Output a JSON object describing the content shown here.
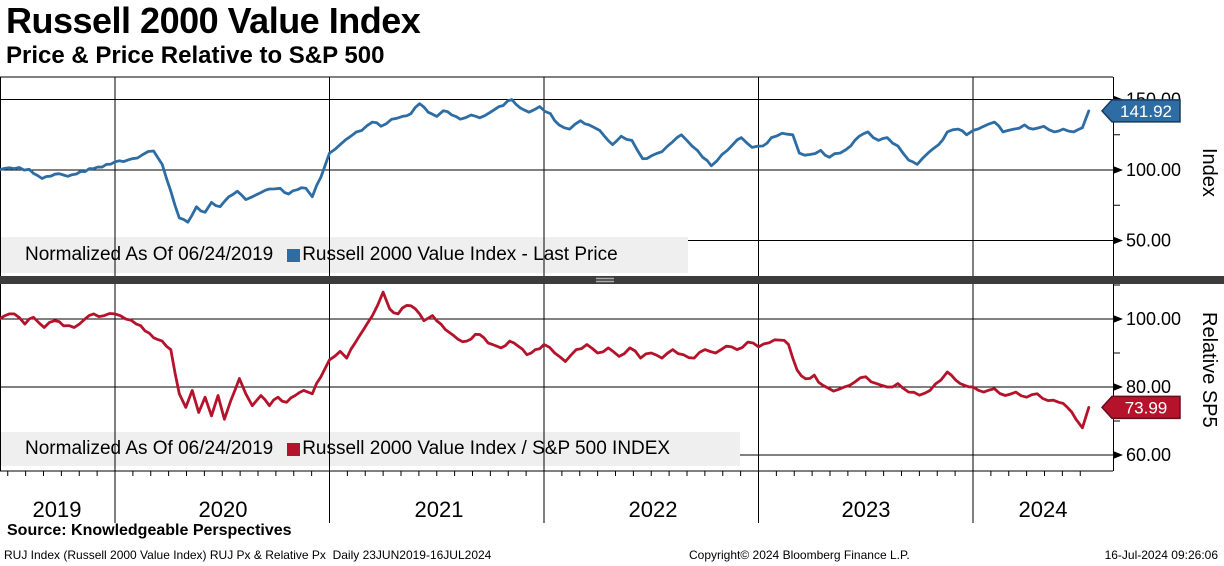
{
  "header": {
    "title": "Russell 2000 Value Index",
    "subtitle": "Price & Price Relative to S&P 500"
  },
  "source_line": "Source: Knowledgeable Perspectives",
  "footer": {
    "left": "RUJ Index (Russell 2000 Value Index) RUJ Px & Relative Px  Daily 23JUN2019-16JUL2024",
    "center": "Copyright© 2024 Bloomberg Finance L.P.",
    "right": "16-Jul-2024 09:26:06"
  },
  "x_axis": {
    "tick_labels": [
      "2019",
      "2020",
      "2021",
      "2022",
      "2023",
      "2024"
    ],
    "gridline_years": [
      2020,
      2021,
      2022,
      2023,
      2024
    ],
    "start": 2019.46,
    "end": 2024.58,
    "minor_ticks_per_year": 12
  },
  "colors": {
    "blue_line": "#2e6da4",
    "blue_badge_border": "#1b3a5c",
    "red_line": "#b5122b",
    "red_badge_border": "#690d1b",
    "legend_bg": "#efefef",
    "separator": "#3c3c3c",
    "grid": "#000000"
  },
  "chart_data": [
    {
      "type": "line",
      "panel": "top",
      "axis_title": "Index",
      "legend": {
        "normalized_label": "Normalized As Of 06/24/2019",
        "series_label": "Russell 2000 Value Index - Last Price"
      },
      "last_price": 141.92,
      "line_color": "#2e6da4",
      "badge_color": "#2e6da4",
      "badge_border": "#1b3a5c",
      "y_ticks_major": [
        150,
        100,
        50
      ],
      "y_ticks_minor": [
        125,
        75
      ],
      "ylim": [
        28,
        166
      ],
      "x": [
        2019.46,
        2019.53,
        2019.6,
        2019.66,
        2019.72,
        2019.78,
        2019.84,
        2019.9,
        2019.96,
        2020.02,
        2020.08,
        2020.13,
        2020.18,
        2020.22,
        2020.26,
        2020.3,
        2020.34,
        2020.38,
        2020.42,
        2020.45,
        2020.49,
        2020.53,
        2020.57,
        2020.61,
        2020.64,
        2020.68,
        2020.72,
        2020.77,
        2020.81,
        2020.85,
        2020.89,
        2020.92,
        2020.96,
        2021.0,
        2021.05,
        2021.1,
        2021.15,
        2021.2,
        2021.24,
        2021.29,
        2021.34,
        2021.38,
        2021.42,
        2021.46,
        2021.5,
        2021.53,
        2021.57,
        2021.61,
        2021.66,
        2021.7,
        2021.75,
        2021.79,
        2021.85,
        2021.89,
        2021.93,
        2021.98,
        2022.03,
        2022.07,
        2022.12,
        2022.17,
        2022.21,
        2022.26,
        2022.32,
        2022.36,
        2022.41,
        2022.46,
        2022.5,
        2022.55,
        2022.6,
        2022.64,
        2022.69,
        2022.74,
        2022.78,
        2022.83,
        2022.88,
        2022.92,
        2022.97,
        2023.02,
        2023.06,
        2023.11,
        2023.16,
        2023.19,
        2023.24,
        2023.29,
        2023.33,
        2023.38,
        2023.43,
        2023.47,
        2023.51,
        2023.56,
        2023.6,
        2023.65,
        2023.7,
        2023.74,
        2023.79,
        2023.84,
        2023.88,
        2023.93,
        2023.97,
        2024.0,
        2024.05,
        2024.1,
        2024.14,
        2024.19,
        2024.24,
        2024.28,
        2024.33,
        2024.38,
        2024.42,
        2024.47,
        2024.51,
        2024.54
      ],
      "v": [
        100,
        101,
        100.5,
        94,
        97,
        95.5,
        99,
        101,
        104,
        106.5,
        108,
        111,
        113.5,
        104,
        85,
        66,
        63,
        74,
        70,
        77,
        74,
        81,
        85,
        79,
        81,
        84,
        86.5,
        87,
        83,
        86,
        87,
        81,
        95,
        112,
        118,
        124,
        128,
        134,
        131,
        136,
        138,
        140,
        147,
        141,
        138,
        142,
        139,
        136,
        139,
        137,
        141,
        145,
        150,
        144,
        141,
        145,
        140,
        132,
        129,
        135,
        132,
        128,
        118,
        124,
        121,
        108,
        110,
        113,
        120,
        125,
        117,
        109,
        103,
        111,
        118,
        123,
        116,
        117,
        123,
        126,
        125,
        112,
        111,
        114,
        109,
        112,
        117,
        124,
        127,
        121,
        123,
        117,
        107,
        104,
        112,
        118,
        127,
        129,
        125,
        128,
        131,
        134,
        127,
        129,
        132,
        129,
        131,
        127,
        129,
        127,
        130,
        141.92
      ]
    },
    {
      "type": "line",
      "panel": "bottom",
      "axis_title": "Relative SP5",
      "legend": {
        "normalized_label": "Normalized As Of 06/24/2019",
        "series_label": "Russell 2000 Value Index / S&P 500 INDEX"
      },
      "last_price": 73.99,
      "line_color": "#b5122b",
      "badge_color": "#b5122b",
      "badge_border": "#690d1b",
      "y_ticks_major": [
        100,
        80,
        60
      ],
      "y_ticks_minor": [
        110,
        90,
        70
      ],
      "ylim": [
        55,
        110
      ],
      "x": [
        2019.46,
        2019.53,
        2019.58,
        2019.62,
        2019.67,
        2019.72,
        2019.76,
        2019.81,
        2019.86,
        2019.9,
        2019.95,
        2020.0,
        2020.05,
        2020.1,
        2020.14,
        2020.18,
        2020.22,
        2020.26,
        2020.3,
        2020.33,
        2020.36,
        2020.39,
        2020.42,
        2020.45,
        2020.48,
        2020.51,
        2020.54,
        2020.58,
        2020.61,
        2020.64,
        2020.68,
        2020.72,
        2020.76,
        2020.8,
        2020.84,
        2020.88,
        2020.92,
        2020.96,
        2021.0,
        2021.05,
        2021.08,
        2021.12,
        2021.16,
        2021.2,
        2021.25,
        2021.28,
        2021.32,
        2021.36,
        2021.4,
        2021.44,
        2021.48,
        2021.52,
        2021.56,
        2021.6,
        2021.64,
        2021.68,
        2021.72,
        2021.76,
        2021.8,
        2021.84,
        2021.88,
        2021.92,
        2021.96,
        2022.0,
        2022.05,
        2022.1,
        2022.15,
        2022.2,
        2022.25,
        2022.3,
        2022.35,
        2022.4,
        2022.45,
        2022.5,
        2022.55,
        2022.6,
        2022.65,
        2022.7,
        2022.75,
        2022.8,
        2022.85,
        2022.9,
        2022.95,
        2023.0,
        2023.05,
        2023.1,
        2023.14,
        2023.18,
        2023.22,
        2023.26,
        2023.3,
        2023.35,
        2023.4,
        2023.45,
        2023.5,
        2023.55,
        2023.6,
        2023.65,
        2023.7,
        2023.75,
        2023.8,
        2023.85,
        2023.88,
        2023.92,
        2023.96,
        2024.0,
        2024.05,
        2024.1,
        2024.15,
        2024.2,
        2024.25,
        2024.3,
        2024.35,
        2024.4,
        2024.44,
        2024.48,
        2024.51,
        2024.54
      ],
      "v": [
        100,
        101.5,
        98.5,
        100.5,
        97.5,
        99.5,
        98,
        97.5,
        100,
        101.5,
        101,
        101.5,
        100,
        98.5,
        96.5,
        94.5,
        93.5,
        91,
        78,
        74,
        79,
        72.5,
        77,
        71.5,
        77.5,
        70.5,
        76,
        82.5,
        78,
        74.5,
        77.5,
        74.5,
        77,
        75.5,
        77.5,
        79,
        78,
        83,
        88,
        90.5,
        88.5,
        93,
        97,
        101,
        107.9,
        103,
        101.5,
        104,
        103,
        99.5,
        101,
        98.5,
        96,
        94,
        93.5,
        95.5,
        94.5,
        92.5,
        91.5,
        93.5,
        92,
        89.5,
        91,
        92.5,
        90,
        87.5,
        91,
        92.5,
        90,
        91.5,
        89,
        91.5,
        88.5,
        90,
        88.5,
        91,
        89.5,
        88.5,
        91,
        90,
        92,
        91,
        93.2,
        91.8,
        93,
        93.8,
        92.5,
        85,
        82.4,
        83.5,
        80.5,
        78.8,
        80,
        81.5,
        83,
        81,
        80,
        81,
        78.5,
        77.6,
        79,
        82,
        84.4,
        82,
        80.5,
        80,
        78.5,
        79.5,
        77.5,
        78.5,
        77,
        78,
        76,
        75.5,
        74,
        70.5,
        68,
        73.99
      ]
    }
  ]
}
